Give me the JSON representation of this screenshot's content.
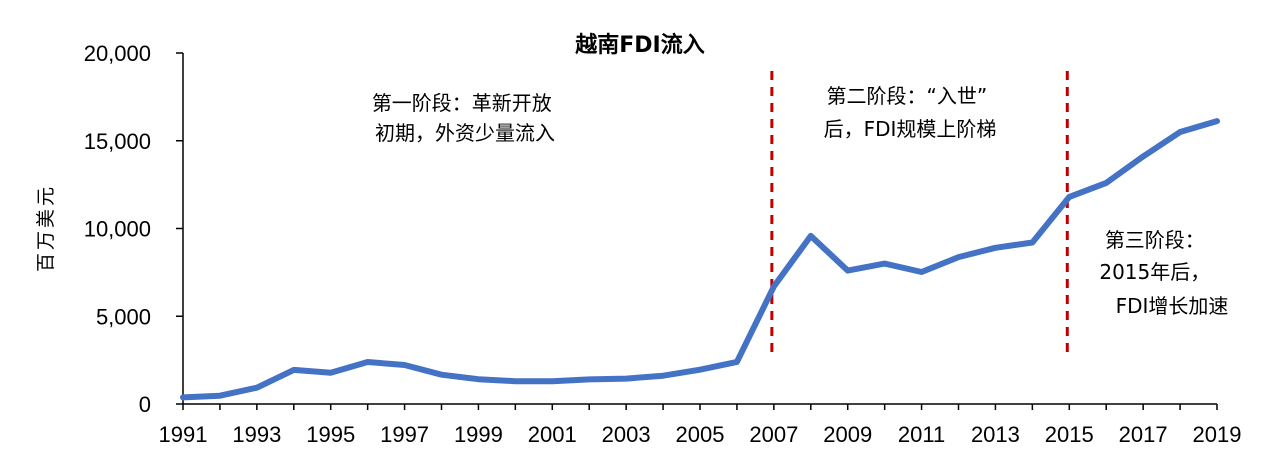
{
  "chart_data": {
    "type": "line",
    "title": "越南FDI流入",
    "ylabel": "百万美元",
    "xlabel": "",
    "ylim": [
      0,
      20000
    ],
    "yticks": [
      0,
      5000,
      10000,
      15000,
      20000
    ],
    "ytick_labels": [
      "0",
      "5,000",
      "10,000",
      "15,000",
      "20,000"
    ],
    "xlim": [
      1991,
      2019
    ],
    "xtick_labels": [
      "1991",
      "1993",
      "1995",
      "1997",
      "1999",
      "2001",
      "2003",
      "2005",
      "2007",
      "2009",
      "2011",
      "2013",
      "2015",
      "2017",
      "2019"
    ],
    "grid": false,
    "legend": "none",
    "series_color": "#4472C4",
    "vline_color": "#C00000",
    "x": [
      1991,
      1992,
      1993,
      1994,
      1995,
      1996,
      1997,
      1998,
      1999,
      2000,
      2001,
      2002,
      2003,
      2004,
      2005,
      2006,
      2007,
      2008,
      2009,
      2010,
      2011,
      2012,
      2013,
      2014,
      2015,
      2016,
      2017,
      2018,
      2019
    ],
    "values": [
      375,
      474,
      926,
      1944,
      1780,
      2395,
      2220,
      1671,
      1412,
      1298,
      1300,
      1400,
      1450,
      1610,
      1954,
      2400,
      6700,
      9579,
      7600,
      8000,
      7519,
      8368,
      8900,
      9200,
      11800,
      12600,
      14100,
      15500,
      16120
    ],
    "vlines": [
      2007,
      2015
    ],
    "annotations": [
      {
        "lines": [
          "第一阶段：革新开放",
          "初期，外资少量流入"
        ]
      },
      {
        "lines": [
          "第二阶段：“入世”",
          "后，FDI规模上阶梯"
        ]
      },
      {
        "lines": [
          "第三阶段：",
          "2015年后，",
          "FDI增长加速"
        ]
      }
    ]
  }
}
